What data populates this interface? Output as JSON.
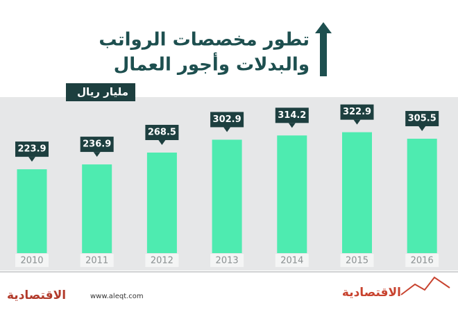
{
  "chart_data": {
    "type": "bar",
    "title": "تطور مخصصات الرواتب",
    "subtitle": "والبدلات وأجور العمال",
    "unit": "مليار ريال",
    "categories": [
      "2010",
      "2011",
      "2012",
      "2013",
      "2014",
      "2015",
      "2016"
    ],
    "values": [
      223.9,
      236.9,
      268.5,
      302.9,
      314.2,
      322.9,
      305.5
    ],
    "color": "#4eebb0"
  },
  "footer": {
    "url": "www.aleqt.com",
    "brand": "الاقتصادية"
  }
}
